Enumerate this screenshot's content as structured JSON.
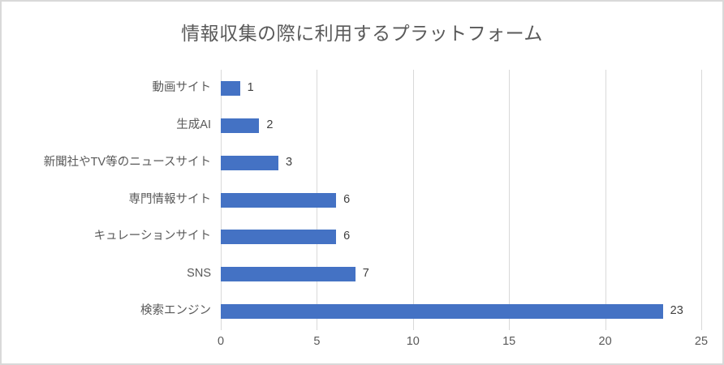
{
  "chart_data": {
    "type": "bar",
    "orientation": "horizontal",
    "title": "情報収集の際に利用するプラットフォーム",
    "categories": [
      "動画サイト",
      "生成AI",
      "新聞社やTV等のニュースサイト",
      "専門情報サイト",
      "キュレーションサイト",
      "SNS",
      "検索エンジン"
    ],
    "values": [
      1,
      2,
      3,
      6,
      6,
      7,
      23
    ],
    "data_labels": [
      "1",
      "2",
      "3",
      "6",
      "6",
      "7",
      "23"
    ],
    "x_ticks": [
      0,
      5,
      10,
      15,
      20,
      25
    ],
    "xlim": [
      0,
      25
    ],
    "grid": true,
    "legend": "none",
    "colors": {
      "bar": "#4472C4",
      "title": "#595959",
      "axis_text": "#595959",
      "data_label": "#404040",
      "gridline": "#D9D9D9",
      "border": "#D9D9D9",
      "background": "#FFFFFF"
    }
  }
}
